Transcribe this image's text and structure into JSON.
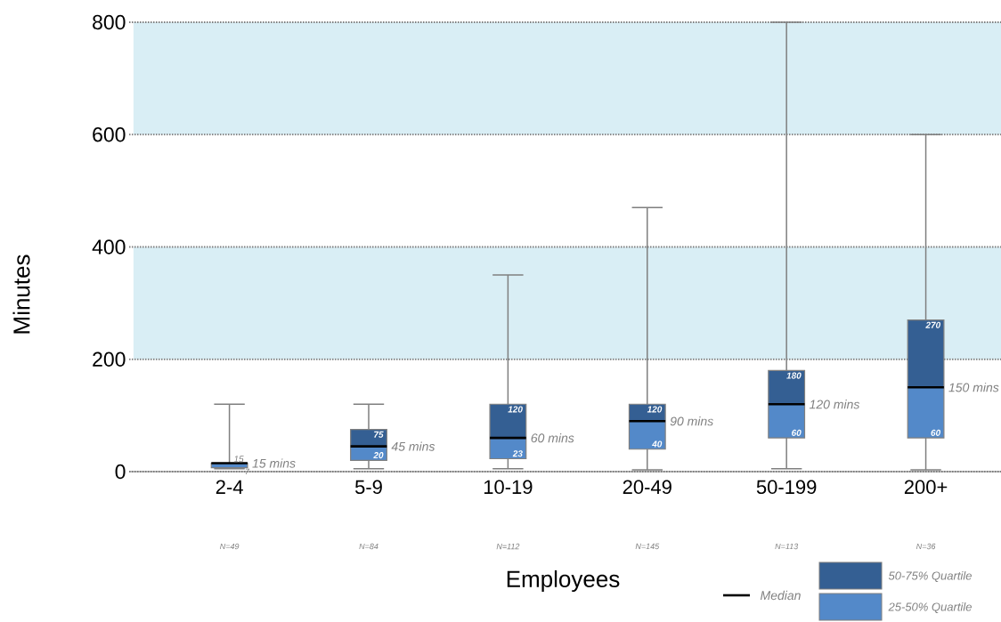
{
  "chart_data": {
    "type": "box",
    "xlabel": "Employees",
    "ylabel": "Minutes",
    "categories": [
      "2-4",
      "5-9",
      "10-19",
      "20-49",
      "50-199",
      "200+"
    ],
    "boxes": [
      {
        "low": 5,
        "q1": 7,
        "median": 15,
        "q3": 15,
        "high": 120
      },
      {
        "low": 5,
        "q1": 20,
        "median": 45,
        "q3": 75,
        "high": 120
      },
      {
        "low": 5,
        "q1": 23,
        "median": 60,
        "q3": 120,
        "high": 350
      },
      {
        "low": 3,
        "q1": 40,
        "median": 90,
        "q3": 120,
        "high": 470
      },
      {
        "low": 5,
        "q1": 60,
        "median": 120,
        "q3": 180,
        "high": 800
      },
      {
        "low": 3,
        "q1": 60,
        "median": 150,
        "q3": 270,
        "high": 600
      }
    ],
    "ylim": [
      0,
      800
    ],
    "yticks": [
      0,
      200,
      400,
      600,
      800
    ],
    "grid": "y",
    "bands": [
      {
        "axis": "y",
        "from": 200,
        "to": 400,
        "color": "#d9eef5"
      },
      {
        "axis": "y",
        "from": 600,
        "to": 800,
        "color": "#d9eef5"
      }
    ],
    "annotations": [
      {
        "text": "15 mins",
        "x": "2-4",
        "y": 15
      },
      {
        "text": "45 mins",
        "x": "5-9",
        "y": 45
      },
      {
        "text": "60 mins",
        "x": "10-19",
        "y": 60
      },
      {
        "text": "90 mins",
        "x": "20-49",
        "y": 90
      },
      {
        "text": "120 mins",
        "x": "50-199",
        "y": 120
      },
      {
        "text": "150 mins",
        "x": "200+",
        "y": 150
      },
      {
        "text": "15",
        "x": "2-4",
        "y": 15
      },
      {
        "text": "7",
        "x": "2-4",
        "y": 7
      },
      {
        "text": "75",
        "x": "5-9",
        "y": 75
      },
      {
        "text": "20",
        "x": "5-9",
        "y": 20
      },
      {
        "text": "120",
        "x": "10-19",
        "y": 120
      },
      {
        "text": "23",
        "x": "10-19",
        "y": 23
      },
      {
        "text": "120",
        "x": "20-49",
        "y": 120
      },
      {
        "text": "40",
        "x": "20-49",
        "y": 40
      },
      {
        "text": "180",
        "x": "50-199",
        "y": 180
      },
      {
        "text": "60",
        "x": "50-199",
        "y": 60
      },
      {
        "text": "270",
        "x": "200+",
        "y": 270
      },
      {
        "text": "60",
        "x": "200+",
        "y": 60
      },
      "N=49",
      "N=84",
      "N=112",
      "N=145",
      "N=113",
      "N=36",
      "Median",
      "50-75% Quartile",
      "25-50% Quartile"
    ]
  }
}
